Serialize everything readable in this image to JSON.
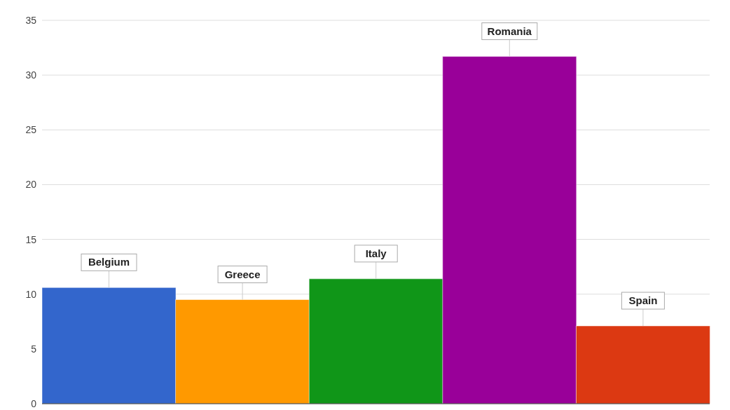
{
  "chart_data": {
    "type": "bar",
    "categories": [
      "Belgium",
      "Greece",
      "Italy",
      "Romania",
      "Spain"
    ],
    "values": [
      10.6,
      9.5,
      11.4,
      31.7,
      7.1
    ],
    "colors": [
      "#3366cc",
      "#ff9900",
      "#109618",
      "#990099",
      "#dc3912"
    ],
    "ylim": [
      0,
      35
    ],
    "yticks": [
      0,
      5,
      10,
      15,
      20,
      25,
      30,
      35
    ],
    "grid": "y",
    "tick_labels": "y"
  }
}
